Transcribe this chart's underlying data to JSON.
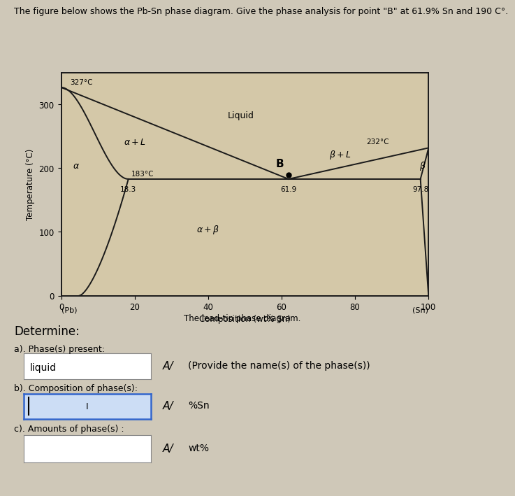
{
  "title": "The figure below shows the Pb-Sn phase diagram. Give the phase analysis for point \"B\" at 61.9% Sn and 190 C°.",
  "xlabel": "Composition (wt% Sn)",
  "ylabel": "Temperature (°C)",
  "caption": "The lead-tin phase diagram.",
  "xlim": [
    0,
    100
  ],
  "ylim": [
    0,
    350
  ],
  "xticks": [
    0,
    20,
    40,
    60,
    80,
    100
  ],
  "yticks": [
    0,
    100,
    200,
    300
  ],
  "xlabel_left": "(Pb)",
  "xlabel_right": "(Sn)",
  "page_bg": "#cfc8b8",
  "diagram_bg": "#d4c8a8",
  "lower_bg": "#c8c0b0",
  "line_color": "#1a1a1a",
  "point_B": [
    61.9,
    190
  ],
  "eutectic_T": 183,
  "alpha_eutectic_comp": 18.3,
  "beta_eutectic_comp": 97.8,
  "Pb_melt": 327,
  "Sn_melt": 232,
  "determine_text": "Determine:",
  "part_a_label": "a). Phase(s) present:",
  "part_a_answer": "liquid",
  "part_a_hint": "(Provide the name(s) of the phase(s))",
  "part_b_label": "b). Composition of phase(s):",
  "part_b_unit": "%Sn",
  "part_c_label": "c). Amounts of phase(s) :",
  "part_c_unit": "wt%",
  "checkmark": "A/"
}
